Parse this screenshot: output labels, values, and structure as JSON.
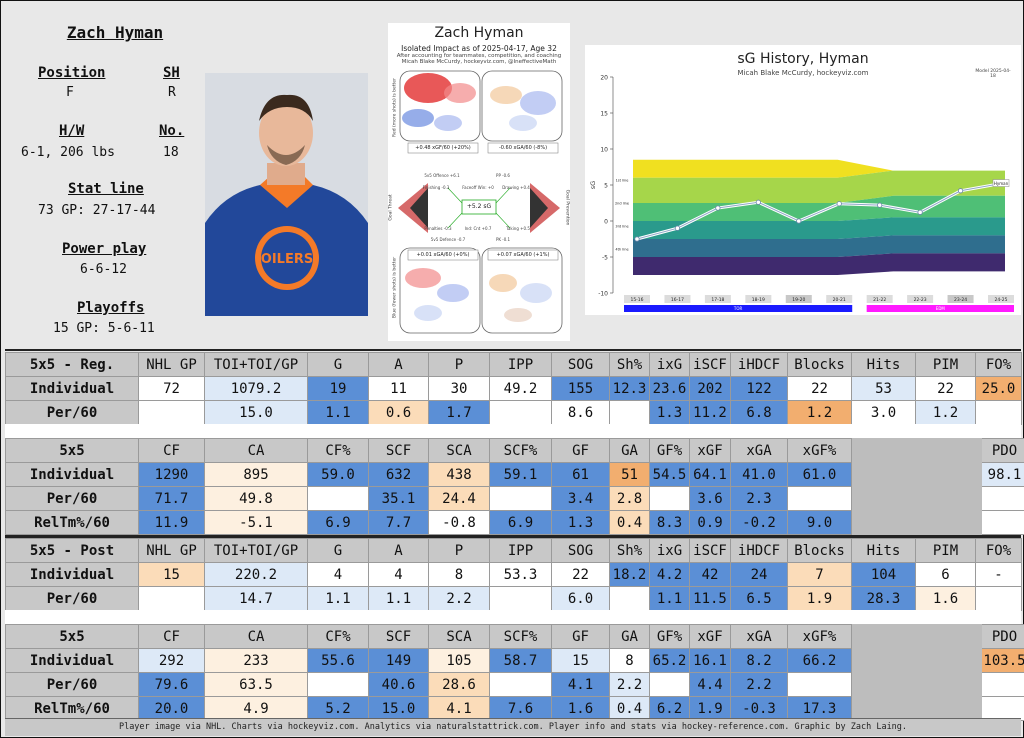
{
  "player": {
    "name": "Zach Hyman",
    "position_label": "Position",
    "position": "F",
    "shoots_label": "SH",
    "shoots": "R",
    "hw_label": "H/W",
    "hw": "6-1, 206 lbs",
    "number_label": "No.",
    "number": "18",
    "statline_label": "Stat line",
    "statline": "73 GP: 27-17-44",
    "pp_label": "Power play",
    "pp": "6-6-12",
    "playoffs_label": "Playoffs",
    "playoffs": "15 GP: 5-6-11"
  },
  "impact_chart": {
    "title": "Zach Hyman",
    "subtitle": "Isolated Impact as of 2025-04-17, Age 32",
    "note1": "After accounting for teammates, competition, and coaching",
    "note2": "Micah Blake McCurdy, hockeyviz.com, @IneffectiveMath",
    "total": "+5.2 sG",
    "box_tl": "+0.48 xGF/60 (+20%)",
    "box_tr": "-0.60 xGA/60 (-8%)",
    "box_bl": "+0.01 xGA/60 (+0%)",
    "box_br": "+0.07 xGA/60 (+1%)",
    "left_axis_top": "Red (more shots) is better",
    "left_axis_bottom": "Blue (fewer shots) is better",
    "side_left": "Goal Threat",
    "side_right": "Goal Prevention",
    "lbl_off": "5v5 Offence +6.1",
    "lbl_pp": "PP -0.6",
    "lbl_fin": "Finishing -0.3",
    "lbl_fo": "Faceoff Win: +0",
    "lbl_draw": "Drawing +0.4",
    "lbl_pen": "Penalties -0.3",
    "lbl_ind": "Ind: Cnt +0.7",
    "lbl_tak": "Taking +0.5",
    "lbl_def": "5v5 Defence -0.7",
    "lbl_pk": "PK -0.1"
  },
  "history_chart": {
    "title": "sG History, Hyman",
    "subtitle": "Micah Blake McCurdy, hockeyviz.com",
    "ylabel": "sG",
    "corner": "Model 2025-04-18",
    "legend_label": "Hyman",
    "team1": "TOR",
    "team2": "EDM",
    "band_labels": [
      "1st line",
      "2nd line",
      "3rd line",
      "4th line"
    ],
    "team1_color": "#1a1aff",
    "team2_color": "#ff1aff"
  },
  "chart_data": {
    "type": "line",
    "title": "sG History, Hyman",
    "ylabel": "sG",
    "x": [
      "15-16",
      "16-17",
      "17-18",
      "18-19",
      "19-20",
      "20-21",
      "21-22",
      "22-23",
      "23-24",
      "24-25"
    ],
    "ylim": [
      -10,
      20
    ],
    "yticks": [
      -10,
      -5,
      0,
      5,
      10,
      15,
      20
    ],
    "series": [
      {
        "name": "Hyman",
        "values": [
          -2.5,
          -1.0,
          1.8,
          2.6,
          0.0,
          2.4,
          2.2,
          1.2,
          4.2,
          5.2
        ]
      }
    ]
  },
  "tables": {
    "reg_ind": {
      "headers": [
        "5x5 - Reg.",
        "NHL GP",
        "TOI+TOI/GP",
        "G",
        "A",
        "P",
        "IPP",
        "SOG",
        "Sh%",
        "ixG",
        "iSCF",
        "iHDCF",
        "Blocks",
        "Hits",
        "PIM",
        "FO%"
      ],
      "rows": [
        {
          "label": "Individual",
          "cells": [
            "72",
            "1079.2",
            "19",
            "11",
            "30",
            "49.2",
            "155",
            "12.3",
            "23.6",
            "202",
            "122",
            "22",
            "53",
            "22",
            "25.0"
          ]
        },
        {
          "label": "Per/60",
          "cells": [
            "",
            "15.0",
            "1.1",
            "0.6",
            "1.7",
            "",
            "8.6",
            "",
            "1.3",
            "11.2",
            "6.8",
            "1.2",
            "3.0",
            "1.2",
            ""
          ]
        }
      ]
    },
    "reg_onice": {
      "headers": [
        "5x5",
        "CF",
        "CA",
        "CF%",
        "SCF",
        "SCA",
        "SCF%",
        "GF",
        "GA",
        "GF%",
        "xGF",
        "xGA",
        "xGF%",
        "",
        "PDO"
      ],
      "rows": [
        {
          "label": "Individual",
          "cells": [
            "1290",
            "895",
            "59.0",
            "632",
            "438",
            "59.1",
            "61",
            "51",
            "54.5",
            "64.1",
            "41.0",
            "61.0",
            "",
            "98.1"
          ]
        },
        {
          "label": "Per/60",
          "cells": [
            "71.7",
            "49.8",
            "",
            "35.1",
            "24.4",
            "",
            "3.4",
            "2.8",
            "",
            "3.6",
            "2.3",
            "",
            "",
            ""
          ]
        },
        {
          "label": "RelTm%/60",
          "cells": [
            "11.9",
            "-5.1",
            "6.9",
            "7.7",
            "-0.8",
            "6.9",
            "1.3",
            "0.4",
            "8.3",
            "0.9",
            "-0.2",
            "9.0",
            "",
            ""
          ]
        }
      ]
    },
    "post_ind": {
      "headers": [
        "5x5 - Post",
        "NHL GP",
        "TOI+TOI/GP",
        "G",
        "A",
        "P",
        "IPP",
        "SOG",
        "Sh%",
        "ixG",
        "iSCF",
        "iHDCF",
        "Blocks",
        "Hits",
        "PIM",
        "FO%"
      ],
      "rows": [
        {
          "label": "Individual",
          "cells": [
            "15",
            "220.2",
            "4",
            "4",
            "8",
            "53.3",
            "22",
            "18.2",
            "4.2",
            "42",
            "24",
            "7",
            "104",
            "6",
            "-"
          ]
        },
        {
          "label": "Per/60",
          "cells": [
            "",
            "14.7",
            "1.1",
            "1.1",
            "2.2",
            "",
            "6.0",
            "",
            "1.1",
            "11.5",
            "6.5",
            "1.9",
            "28.3",
            "1.6",
            ""
          ]
        }
      ]
    },
    "post_onice": {
      "headers": [
        "5x5",
        "CF",
        "CA",
        "CF%",
        "SCF",
        "SCA",
        "SCF%",
        "GF",
        "GA",
        "GF%",
        "xGF",
        "xGA",
        "xGF%",
        "",
        "PDO"
      ],
      "rows": [
        {
          "label": "Individual",
          "cells": [
            "292",
            "233",
            "55.6",
            "149",
            "105",
            "58.7",
            "15",
            "8",
            "65.2",
            "16.1",
            "8.2",
            "66.2",
            "",
            "103.5"
          ]
        },
        {
          "label": "Per/60",
          "cells": [
            "79.6",
            "63.5",
            "",
            "40.6",
            "28.6",
            "",
            "4.1",
            "2.2",
            "",
            "4.4",
            "2.2",
            "",
            "",
            ""
          ]
        },
        {
          "label": "RelTm%/60",
          "cells": [
            "20.0",
            "4.9",
            "5.2",
            "15.0",
            "4.1",
            "7.6",
            "1.6",
            "0.4",
            "6.2",
            "1.9",
            "-0.3",
            "17.3",
            "",
            ""
          ]
        }
      ]
    }
  },
  "footer": "Player image via NHL. Charts via hockeyviz.com. Analytics via naturalstattrick.com. Player info and stats via hockey-reference.com. Graphic by Zach Laing."
}
